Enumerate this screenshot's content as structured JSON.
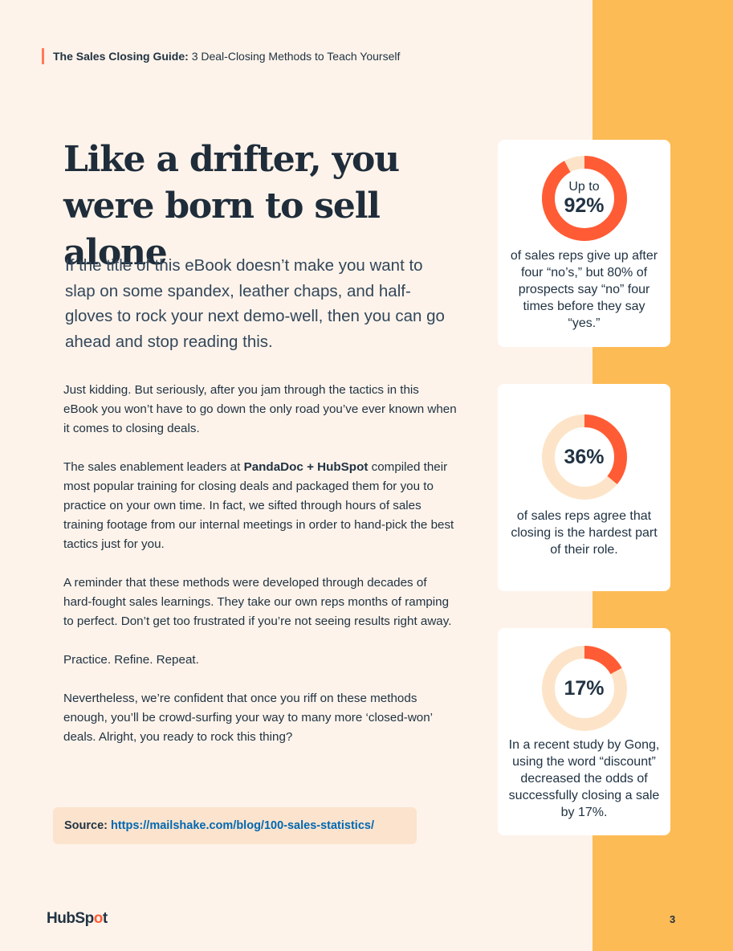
{
  "header": {
    "guide_title": "The Sales Closing Guide:",
    "guide_subtitle": "3 Deal-Closing Methods to Teach Yourself"
  },
  "title": {
    "line1": "Like a drifter, you",
    "line2": "were born to sell alone"
  },
  "lead": "If the title of this eBook doesn’t make you want to slap on some spandex, leather chaps, and half-gloves to rock your next demo-well, then you can go ahead and stop reading this.",
  "body": {
    "p1": "Just kidding. But seriously, after you jam through the tactics in this eBook you won’t have to go down the only road you’ve ever known when it comes to closing deals.",
    "p2_prefix": "The sales enablement leaders at ",
    "p2_bold": "PandaDoc + HubSpot",
    "p2_suffix": " compiled their most popular training for closing deals and packaged them for you to practice on your own time. In fact, we sifted through hours of sales training footage from our internal meetings in order to hand-pick the best tactics just for you.",
    "p3": "A reminder that these methods were developed through decades of hard-fought sales learnings. They take our own reps months of ramping to perfect. Don’t get too frustrated if you’re not seeing results right away.",
    "p4": "Practice. Refine. Repeat.",
    "p5": "Nevertheless, we’re confident that once you riff on these methods enough, you’ll be crowd-surfing your way to many more ‘closed-won’ deals. Alright, you ready to rock this thing?"
  },
  "source": {
    "label": "Source:",
    "link": "https://mailshake.com/blog/100-sales-statistics/"
  },
  "stats": [
    {
      "prefix": "Up to",
      "value": 92,
      "label": "92%",
      "desc": "of sales reps give up after four “no’s,” but 80% of prospects say “no” four times before they say “yes.”"
    },
    {
      "prefix": "",
      "value": 36,
      "label": "36%",
      "desc": "of sales reps agree that closing is the hardest part of their role."
    },
    {
      "prefix": "",
      "value": 17,
      "label": "17%",
      "desc": "In a recent study by Gong, using the word “discount” decreased the odds of successfully closing a sale by 17%."
    }
  ],
  "colors": {
    "ring_fill": "#ff5c35",
    "ring_track": "#fde4c8",
    "accent_band": "#fdbb55",
    "link": "#0068b1"
  },
  "footer": {
    "logo_part1": "HubSp",
    "logo_part2": "o",
    "logo_part3": "t",
    "page_number": "3"
  }
}
